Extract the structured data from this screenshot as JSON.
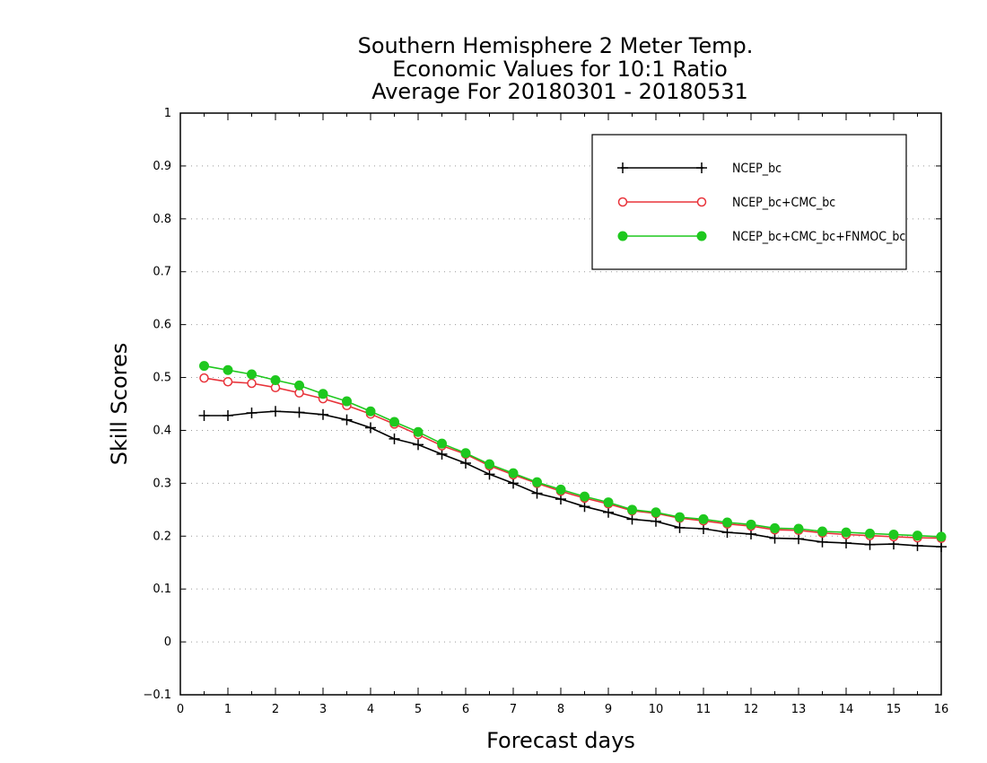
{
  "chart_data": {
    "type": "line",
    "title": [
      "Southern Hemisphere 2 Meter Temp.",
      "Economic Values for 10:1 Ratio",
      "Average For 20180301 - 20180531"
    ],
    "xlabel": "Forecast days",
    "ylabel": "Skill Scores",
    "xlim": [
      0,
      16
    ],
    "ylim": [
      -0.1,
      1
    ],
    "x_ticks": [
      "0",
      "1",
      "2",
      "3",
      "4",
      "5",
      "6",
      "7",
      "8",
      "9",
      "10",
      "11",
      "12",
      "13",
      "14",
      "15",
      "16"
    ],
    "y_ticks": [
      "-0.1",
      "0",
      "0.1",
      "0.2",
      "0.3",
      "0.4",
      "0.5",
      "0.6",
      "0.7",
      "0.8",
      "0.9",
      "1"
    ],
    "grid": "horizontal dotted",
    "legend_position": "top-right",
    "x": [
      0.5,
      1,
      1.5,
      2,
      2.5,
      3,
      3.5,
      4,
      4.5,
      5,
      5.5,
      6,
      6.5,
      7,
      7.5,
      8,
      8.5,
      9,
      9.5,
      10,
      10.5,
      11,
      11.5,
      12,
      12.5,
      13,
      13.5,
      14,
      14.5,
      15,
      15.5,
      16
    ],
    "series": [
      {
        "name": "NCEP_bc",
        "color": "#000000",
        "marker": "plus",
        "values": [
          0.428,
          0.428,
          0.433,
          0.436,
          0.434,
          0.43,
          0.42,
          0.405,
          0.384,
          0.373,
          0.355,
          0.338,
          0.317,
          0.3,
          0.281,
          0.27,
          0.256,
          0.245,
          0.232,
          0.228,
          0.216,
          0.214,
          0.207,
          0.204,
          0.196,
          0.195,
          0.189,
          0.187,
          0.184,
          0.185,
          0.182,
          0.18
        ]
      },
      {
        "name": "NCEP_bc+CMC_bc",
        "color": "#e8333a",
        "marker": "open-circle",
        "values": [
          0.499,
          0.492,
          0.489,
          0.481,
          0.471,
          0.46,
          0.447,
          0.431,
          0.412,
          0.392,
          0.371,
          0.355,
          0.333,
          0.316,
          0.3,
          0.285,
          0.272,
          0.261,
          0.248,
          0.243,
          0.234,
          0.229,
          0.223,
          0.219,
          0.212,
          0.211,
          0.206,
          0.203,
          0.201,
          0.199,
          0.197,
          0.196
        ]
      },
      {
        "name": "NCEP_bc+CMC_bc+FNMOC_bc",
        "color": "#1ec81e",
        "marker": "filled-circle",
        "values": [
          0.522,
          0.514,
          0.506,
          0.495,
          0.485,
          0.469,
          0.455,
          0.436,
          0.416,
          0.397,
          0.375,
          0.357,
          0.336,
          0.319,
          0.302,
          0.288,
          0.275,
          0.264,
          0.25,
          0.245,
          0.236,
          0.232,
          0.226,
          0.222,
          0.215,
          0.214,
          0.209,
          0.207,
          0.205,
          0.203,
          0.201,
          0.199
        ]
      }
    ]
  }
}
